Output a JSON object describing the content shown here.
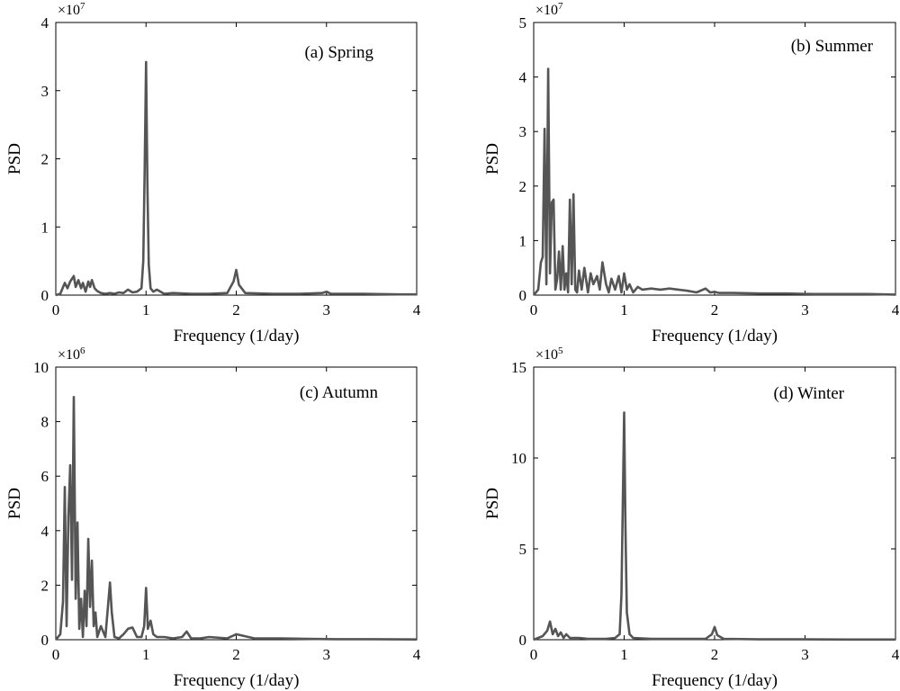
{
  "figure": {
    "series_color": "#555555",
    "axis_color": "#000000"
  },
  "chart_data": [
    {
      "type": "line",
      "panel_label": "(a) Spring",
      "xlabel": "Frequency (1/day)",
      "ylabel": "PSD",
      "xlim": [
        0,
        4
      ],
      "ylim": [
        0,
        4
      ],
      "xticks": [
        0,
        1,
        2,
        3,
        4
      ],
      "yticks": [
        0,
        1,
        2,
        3,
        4
      ],
      "exponent_base": "×10",
      "exponent_power": "7",
      "grid": false,
      "series": [
        {
          "x": [
            0,
            0.05,
            0.1,
            0.13,
            0.16,
            0.2,
            0.22,
            0.25,
            0.28,
            0.3,
            0.33,
            0.36,
            0.38,
            0.4,
            0.43,
            0.46,
            0.5,
            0.55,
            0.6,
            0.65,
            0.7,
            0.75,
            0.8,
            0.85,
            0.9,
            0.95,
            0.97,
            0.985,
            1.0,
            1.015,
            1.03,
            1.05,
            1.08,
            1.12,
            1.2,
            1.3,
            1.5,
            1.7,
            1.9,
            1.97,
            2.0,
            2.03,
            2.1,
            2.4,
            2.7,
            2.95,
            3.0,
            3.05,
            3.4,
            3.8,
            4.0
          ],
          "y": [
            0,
            0.02,
            0.18,
            0.1,
            0.2,
            0.28,
            0.12,
            0.22,
            0.1,
            0.18,
            0.05,
            0.2,
            0.12,
            0.22,
            0.1,
            0.06,
            0.03,
            0.02,
            0.03,
            0.02,
            0.04,
            0.03,
            0.08,
            0.04,
            0.05,
            0.1,
            0.5,
            1.8,
            3.42,
            1.6,
            0.45,
            0.1,
            0.05,
            0.08,
            0.02,
            0.03,
            0.02,
            0.02,
            0.03,
            0.2,
            0.37,
            0.15,
            0.03,
            0.02,
            0.02,
            0.03,
            0.05,
            0.02,
            0.02,
            0.01,
            0.01
          ]
        }
      ]
    },
    {
      "type": "line",
      "panel_label": "(b) Summer",
      "xlabel": "Frequency (1/day)",
      "ylabel": "PSD",
      "xlim": [
        0,
        4
      ],
      "ylim": [
        0,
        5
      ],
      "xticks": [
        0,
        1,
        2,
        3,
        4
      ],
      "yticks": [
        0,
        1,
        2,
        3,
        4,
        5
      ],
      "exponent_base": "×10",
      "exponent_power": "7",
      "grid": false,
      "series": [
        {
          "x": [
            0,
            0.05,
            0.08,
            0.1,
            0.12,
            0.14,
            0.16,
            0.18,
            0.2,
            0.22,
            0.24,
            0.26,
            0.28,
            0.3,
            0.32,
            0.34,
            0.36,
            0.38,
            0.4,
            0.42,
            0.44,
            0.46,
            0.48,
            0.5,
            0.53,
            0.56,
            0.6,
            0.63,
            0.66,
            0.7,
            0.73,
            0.76,
            0.8,
            0.83,
            0.86,
            0.9,
            0.94,
            0.97,
            1.0,
            1.03,
            1.06,
            1.1,
            1.15,
            1.2,
            1.3,
            1.4,
            1.5,
            1.6,
            1.7,
            1.8,
            1.9,
            1.95,
            2.0,
            2.05,
            2.2,
            2.5,
            2.8,
            3.1,
            3.4,
            3.7,
            4.0
          ],
          "y": [
            0,
            0.1,
            0.6,
            0.7,
            3.05,
            0.2,
            4.15,
            0.4,
            1.7,
            1.75,
            0.1,
            0.3,
            0.8,
            0.1,
            0.9,
            0.1,
            0.4,
            0.05,
            1.75,
            0.2,
            1.85,
            0.1,
            0.05,
            0.45,
            0.1,
            0.5,
            0.05,
            0.4,
            0.2,
            0.35,
            0.1,
            0.6,
            0.2,
            0.05,
            0.3,
            0.1,
            0.35,
            0.05,
            0.4,
            0.1,
            0.2,
            0.05,
            0.15,
            0.1,
            0.12,
            0.1,
            0.12,
            0.1,
            0.08,
            0.05,
            0.12,
            0.05,
            0.06,
            0.04,
            0.04,
            0.03,
            0.03,
            0.02,
            0.02,
            0.02,
            0.01
          ]
        }
      ]
    },
    {
      "type": "line",
      "panel_label": "(c) Autumn",
      "xlabel": "Frequency (1/day)",
      "ylabel": "PSD",
      "xlim": [
        0,
        4
      ],
      "ylim": [
        0,
        10
      ],
      "xticks": [
        0,
        1,
        2,
        3,
        4
      ],
      "yticks": [
        0,
        2,
        4,
        6,
        8,
        10
      ],
      "exponent_base": "×10",
      "exponent_power": "6",
      "grid": false,
      "series": [
        {
          "x": [
            0,
            0.05,
            0.08,
            0.1,
            0.12,
            0.14,
            0.16,
            0.18,
            0.2,
            0.22,
            0.24,
            0.26,
            0.28,
            0.3,
            0.32,
            0.34,
            0.36,
            0.38,
            0.4,
            0.42,
            0.44,
            0.46,
            0.5,
            0.55,
            0.6,
            0.62,
            0.65,
            0.7,
            0.75,
            0.8,
            0.85,
            0.9,
            0.95,
            0.98,
            1.0,
            1.02,
            1.05,
            1.08,
            1.12,
            1.2,
            1.3,
            1.4,
            1.45,
            1.5,
            1.6,
            1.7,
            1.9,
            2.0,
            2.2,
            2.5,
            2.8,
            3.1,
            3.5,
            4.0
          ],
          "y": [
            0,
            0.2,
            1.4,
            5.6,
            0.5,
            4.5,
            6.4,
            2.2,
            8.9,
            1.5,
            4.3,
            0.4,
            1.5,
            0.1,
            1.8,
            0.5,
            3.7,
            1.2,
            2.9,
            0.5,
            1.0,
            0.1,
            0.5,
            0.1,
            2.1,
            1.0,
            0.1,
            0.05,
            0.2,
            0.4,
            0.45,
            0.1,
            0.1,
            0.5,
            1.9,
            0.4,
            0.7,
            0.2,
            0.1,
            0.1,
            0.05,
            0.1,
            0.3,
            0.05,
            0.05,
            0.1,
            0.05,
            0.2,
            0.05,
            0.05,
            0.03,
            0.02,
            0.02,
            0.01
          ]
        }
      ]
    },
    {
      "type": "line",
      "panel_label": "(d) Winter",
      "xlabel": "Frequency (1/day)",
      "ylabel": "PSD",
      "xlim": [
        0,
        4
      ],
      "ylim": [
        0,
        15
      ],
      "xticks": [
        0,
        1,
        2,
        3,
        4
      ],
      "yticks": [
        0,
        5,
        10,
        15
      ],
      "exponent_base": "×10",
      "exponent_power": "5",
      "grid": false,
      "series": [
        {
          "x": [
            0,
            0.05,
            0.1,
            0.15,
            0.18,
            0.21,
            0.24,
            0.27,
            0.3,
            0.33,
            0.36,
            0.4,
            0.5,
            0.6,
            0.7,
            0.8,
            0.9,
            0.95,
            0.97,
            0.985,
            1.0,
            1.015,
            1.03,
            1.06,
            1.1,
            1.3,
            1.6,
            1.9,
            1.97,
            2.0,
            2.03,
            2.1,
            2.5,
            3.0,
            3.5,
            4.0
          ],
          "y": [
            0,
            0.1,
            0.2,
            0.5,
            1.0,
            0.3,
            0.6,
            0.2,
            0.4,
            0.1,
            0.3,
            0.1,
            0.1,
            0.05,
            0.05,
            0.05,
            0.1,
            0.3,
            2.5,
            7.5,
            12.5,
            6.0,
            1.5,
            0.3,
            0.1,
            0.05,
            0.05,
            0.05,
            0.3,
            0.7,
            0.25,
            0.05,
            0.02,
            0.02,
            0.01,
            0.01
          ]
        }
      ]
    }
  ]
}
